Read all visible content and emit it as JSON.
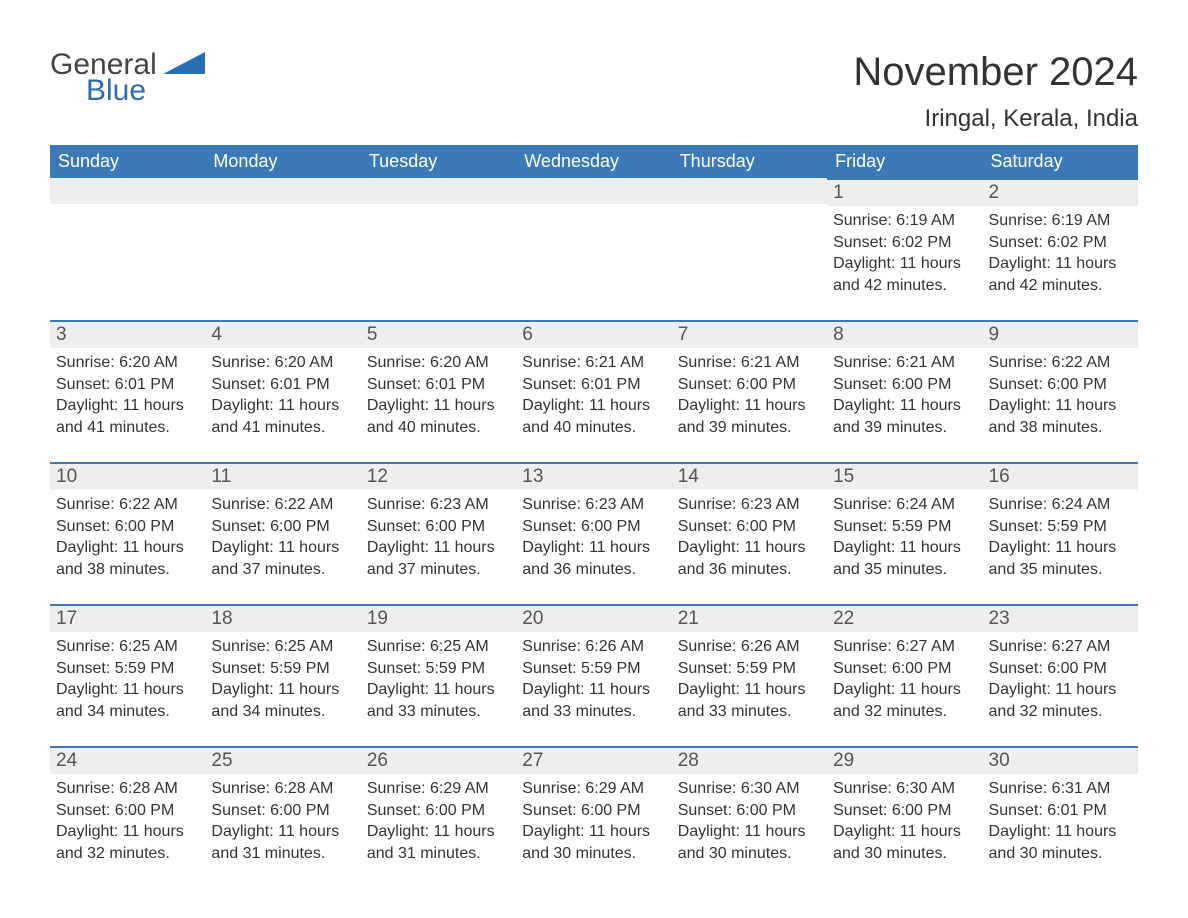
{
  "logo": {
    "text_general": "General",
    "text_blue": "Blue",
    "triangle_color": "#2a6db0"
  },
  "header": {
    "month_title": "November 2024",
    "location": "Iringal, Kerala, India"
  },
  "colors": {
    "header_bg": "#3b79b7",
    "header_text": "#ffffff",
    "daynum_bg": "#eeeeee",
    "row_border": "#3b79b7",
    "body_text": "#333333"
  },
  "calendar": {
    "columns": [
      "Sunday",
      "Monday",
      "Tuesday",
      "Wednesday",
      "Thursday",
      "Friday",
      "Saturday"
    ],
    "weeks": [
      [
        null,
        null,
        null,
        null,
        null,
        {
          "day": "1",
          "sunrise": "Sunrise: 6:19 AM",
          "sunset": "Sunset: 6:02 PM",
          "daylight1": "Daylight: 11 hours",
          "daylight2": "and 42 minutes."
        },
        {
          "day": "2",
          "sunrise": "Sunrise: 6:19 AM",
          "sunset": "Sunset: 6:02 PM",
          "daylight1": "Daylight: 11 hours",
          "daylight2": "and 42 minutes."
        }
      ],
      [
        {
          "day": "3",
          "sunrise": "Sunrise: 6:20 AM",
          "sunset": "Sunset: 6:01 PM",
          "daylight1": "Daylight: 11 hours",
          "daylight2": "and 41 minutes."
        },
        {
          "day": "4",
          "sunrise": "Sunrise: 6:20 AM",
          "sunset": "Sunset: 6:01 PM",
          "daylight1": "Daylight: 11 hours",
          "daylight2": "and 41 minutes."
        },
        {
          "day": "5",
          "sunrise": "Sunrise: 6:20 AM",
          "sunset": "Sunset: 6:01 PM",
          "daylight1": "Daylight: 11 hours",
          "daylight2": "and 40 minutes."
        },
        {
          "day": "6",
          "sunrise": "Sunrise: 6:21 AM",
          "sunset": "Sunset: 6:01 PM",
          "daylight1": "Daylight: 11 hours",
          "daylight2": "and 40 minutes."
        },
        {
          "day": "7",
          "sunrise": "Sunrise: 6:21 AM",
          "sunset": "Sunset: 6:00 PM",
          "daylight1": "Daylight: 11 hours",
          "daylight2": "and 39 minutes."
        },
        {
          "day": "8",
          "sunrise": "Sunrise: 6:21 AM",
          "sunset": "Sunset: 6:00 PM",
          "daylight1": "Daylight: 11 hours",
          "daylight2": "and 39 minutes."
        },
        {
          "day": "9",
          "sunrise": "Sunrise: 6:22 AM",
          "sunset": "Sunset: 6:00 PM",
          "daylight1": "Daylight: 11 hours",
          "daylight2": "and 38 minutes."
        }
      ],
      [
        {
          "day": "10",
          "sunrise": "Sunrise: 6:22 AM",
          "sunset": "Sunset: 6:00 PM",
          "daylight1": "Daylight: 11 hours",
          "daylight2": "and 38 minutes."
        },
        {
          "day": "11",
          "sunrise": "Sunrise: 6:22 AM",
          "sunset": "Sunset: 6:00 PM",
          "daylight1": "Daylight: 11 hours",
          "daylight2": "and 37 minutes."
        },
        {
          "day": "12",
          "sunrise": "Sunrise: 6:23 AM",
          "sunset": "Sunset: 6:00 PM",
          "daylight1": "Daylight: 11 hours",
          "daylight2": "and 37 minutes."
        },
        {
          "day": "13",
          "sunrise": "Sunrise: 6:23 AM",
          "sunset": "Sunset: 6:00 PM",
          "daylight1": "Daylight: 11 hours",
          "daylight2": "and 36 minutes."
        },
        {
          "day": "14",
          "sunrise": "Sunrise: 6:23 AM",
          "sunset": "Sunset: 6:00 PM",
          "daylight1": "Daylight: 11 hours",
          "daylight2": "and 36 minutes."
        },
        {
          "day": "15",
          "sunrise": "Sunrise: 6:24 AM",
          "sunset": "Sunset: 5:59 PM",
          "daylight1": "Daylight: 11 hours",
          "daylight2": "and 35 minutes."
        },
        {
          "day": "16",
          "sunrise": "Sunrise: 6:24 AM",
          "sunset": "Sunset: 5:59 PM",
          "daylight1": "Daylight: 11 hours",
          "daylight2": "and 35 minutes."
        }
      ],
      [
        {
          "day": "17",
          "sunrise": "Sunrise: 6:25 AM",
          "sunset": "Sunset: 5:59 PM",
          "daylight1": "Daylight: 11 hours",
          "daylight2": "and 34 minutes."
        },
        {
          "day": "18",
          "sunrise": "Sunrise: 6:25 AM",
          "sunset": "Sunset: 5:59 PM",
          "daylight1": "Daylight: 11 hours",
          "daylight2": "and 34 minutes."
        },
        {
          "day": "19",
          "sunrise": "Sunrise: 6:25 AM",
          "sunset": "Sunset: 5:59 PM",
          "daylight1": "Daylight: 11 hours",
          "daylight2": "and 33 minutes."
        },
        {
          "day": "20",
          "sunrise": "Sunrise: 6:26 AM",
          "sunset": "Sunset: 5:59 PM",
          "daylight1": "Daylight: 11 hours",
          "daylight2": "and 33 minutes."
        },
        {
          "day": "21",
          "sunrise": "Sunrise: 6:26 AM",
          "sunset": "Sunset: 5:59 PM",
          "daylight1": "Daylight: 11 hours",
          "daylight2": "and 33 minutes."
        },
        {
          "day": "22",
          "sunrise": "Sunrise: 6:27 AM",
          "sunset": "Sunset: 6:00 PM",
          "daylight1": "Daylight: 11 hours",
          "daylight2": "and 32 minutes."
        },
        {
          "day": "23",
          "sunrise": "Sunrise: 6:27 AM",
          "sunset": "Sunset: 6:00 PM",
          "daylight1": "Daylight: 11 hours",
          "daylight2": "and 32 minutes."
        }
      ],
      [
        {
          "day": "24",
          "sunrise": "Sunrise: 6:28 AM",
          "sunset": "Sunset: 6:00 PM",
          "daylight1": "Daylight: 11 hours",
          "daylight2": "and 32 minutes."
        },
        {
          "day": "25",
          "sunrise": "Sunrise: 6:28 AM",
          "sunset": "Sunset: 6:00 PM",
          "daylight1": "Daylight: 11 hours",
          "daylight2": "and 31 minutes."
        },
        {
          "day": "26",
          "sunrise": "Sunrise: 6:29 AM",
          "sunset": "Sunset: 6:00 PM",
          "daylight1": "Daylight: 11 hours",
          "daylight2": "and 31 minutes."
        },
        {
          "day": "27",
          "sunrise": "Sunrise: 6:29 AM",
          "sunset": "Sunset: 6:00 PM",
          "daylight1": "Daylight: 11 hours",
          "daylight2": "and 30 minutes."
        },
        {
          "day": "28",
          "sunrise": "Sunrise: 6:30 AM",
          "sunset": "Sunset: 6:00 PM",
          "daylight1": "Daylight: 11 hours",
          "daylight2": "and 30 minutes."
        },
        {
          "day": "29",
          "sunrise": "Sunrise: 6:30 AM",
          "sunset": "Sunset: 6:00 PM",
          "daylight1": "Daylight: 11 hours",
          "daylight2": "and 30 minutes."
        },
        {
          "day": "30",
          "sunrise": "Sunrise: 6:31 AM",
          "sunset": "Sunset: 6:01 PM",
          "daylight1": "Daylight: 11 hours",
          "daylight2": "and 30 minutes."
        }
      ]
    ]
  }
}
